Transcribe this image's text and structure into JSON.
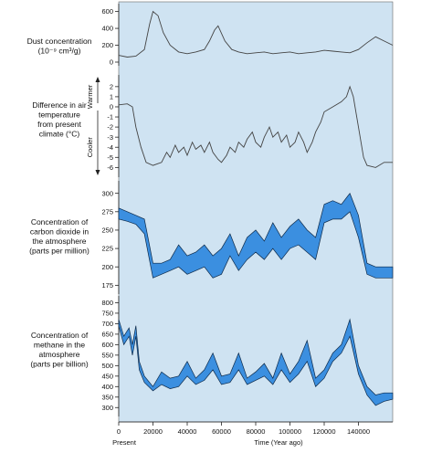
{
  "chart_data": [
    {
      "type": "line",
      "label_lines": [
        "Dust concentration",
        "(10⁻⁹ cm³/g)"
      ],
      "yticks": [
        0,
        200,
        400,
        600
      ],
      "ylim": [
        0,
        650
      ],
      "color": "#444444",
      "x": [
        0,
        5000,
        10000,
        15000,
        18000,
        20000,
        23000,
        26000,
        30000,
        35000,
        40000,
        45000,
        50000,
        53000,
        56000,
        58000,
        62000,
        66000,
        70000,
        75000,
        80000,
        85000,
        90000,
        95000,
        100000,
        105000,
        110000,
        115000,
        120000,
        125000,
        130000,
        135000,
        140000,
        145000,
        150000,
        155000,
        160000
      ],
      "y": [
        80,
        60,
        70,
        150,
        450,
        600,
        550,
        350,
        200,
        120,
        100,
        120,
        150,
        250,
        380,
        430,
        250,
        150,
        120,
        100,
        110,
        120,
        100,
        110,
        120,
        100,
        110,
        120,
        140,
        130,
        120,
        110,
        150,
        230,
        300,
        250,
        200
      ]
    },
    {
      "type": "line",
      "label_lines": [
        "Difference in air",
        "temperature",
        "from present",
        "climate (°C)"
      ],
      "side_labels": [
        "Warmer",
        "Cooler"
      ],
      "yticks": [
        2,
        1,
        0,
        -1,
        -2,
        -3,
        -4,
        -5,
        -6
      ],
      "ylim": [
        -6.6,
        2.8
      ],
      "color": "#444444",
      "x": [
        0,
        5000,
        8000,
        10000,
        13000,
        16000,
        20000,
        25000,
        28000,
        30000,
        33000,
        35000,
        38000,
        40000,
        43000,
        45000,
        48000,
        50000,
        53000,
        55000,
        58000,
        60000,
        63000,
        65000,
        68000,
        70000,
        73000,
        75000,
        78000,
        80000,
        83000,
        85000,
        88000,
        90000,
        93000,
        95000,
        98000,
        100000,
        103000,
        105000,
        108000,
        110000,
        113000,
        115000,
        118000,
        120000,
        125000,
        130000,
        133000,
        135000,
        137000,
        140000,
        143000,
        145000,
        150000,
        155000,
        160000
      ],
      "y": [
        0.2,
        0.3,
        0,
        -2,
        -4,
        -5.5,
        -5.8,
        -5.5,
        -4.5,
        -5,
        -3.8,
        -4.5,
        -4,
        -4.8,
        -3.5,
        -4.2,
        -3.8,
        -4.5,
        -3.5,
        -4.5,
        -5.2,
        -5.5,
        -4.8,
        -4,
        -4.5,
        -3.5,
        -4,
        -3.2,
        -2.5,
        -3.5,
        -4,
        -3,
        -2,
        -3,
        -2.5,
        -3.5,
        -2.8,
        -4,
        -3.5,
        -2.5,
        -3.5,
        -4.5,
        -3.5,
        -2.5,
        -1.5,
        -0.5,
        0,
        0.5,
        1,
        2,
        1,
        -2,
        -5,
        -5.8,
        -6,
        -5.5,
        -5.5
      ]
    },
    {
      "type": "area",
      "label_lines": [
        "Concentration of",
        "carbon dioxide in",
        "the atmosphere",
        "(parts per million)"
      ],
      "yticks": [
        175,
        200,
        225,
        250,
        275,
        300
      ],
      "ylim": [
        168,
        312
      ],
      "color": "#3b8fe0",
      "x": [
        0,
        5000,
        10000,
        15000,
        20000,
        25000,
        30000,
        35000,
        40000,
        45000,
        50000,
        55000,
        60000,
        65000,
        70000,
        75000,
        80000,
        85000,
        90000,
        95000,
        100000,
        105000,
        110000,
        115000,
        120000,
        125000,
        130000,
        135000,
        140000,
        145000,
        150000,
        155000,
        160000
      ],
      "upper": [
        280,
        275,
        270,
        265,
        205,
        205,
        210,
        230,
        215,
        220,
        230,
        215,
        225,
        245,
        215,
        240,
        250,
        235,
        260,
        240,
        255,
        265,
        250,
        240,
        285,
        290,
        285,
        300,
        270,
        205,
        200,
        200,
        200
      ],
      "lower": [
        265,
        262,
        258,
        245,
        185,
        190,
        195,
        200,
        190,
        195,
        200,
        185,
        190,
        215,
        195,
        210,
        220,
        210,
        225,
        210,
        225,
        230,
        220,
        210,
        260,
        265,
        265,
        275,
        240,
        190,
        185,
        185,
        185
      ]
    },
    {
      "type": "area",
      "label_lines": [
        "Concentration of",
        "methane in the",
        "atmosphere",
        "(parts per billion)"
      ],
      "yticks": [
        300,
        350,
        400,
        450,
        500,
        550,
        600,
        650,
        700,
        750,
        800
      ],
      "ylim": [
        275,
        815
      ],
      "color": "#3b8fe0",
      "x": [
        0,
        3000,
        6000,
        8000,
        10000,
        12000,
        15000,
        20000,
        25000,
        30000,
        35000,
        40000,
        45000,
        50000,
        55000,
        60000,
        65000,
        70000,
        75000,
        80000,
        85000,
        90000,
        95000,
        100000,
        105000,
        110000,
        115000,
        120000,
        125000,
        130000,
        135000,
        140000,
        145000,
        150000,
        155000,
        160000
      ],
      "upper": [
        720,
        640,
        680,
        600,
        690,
        520,
        450,
        400,
        470,
        440,
        450,
        520,
        440,
        480,
        560,
        450,
        460,
        560,
        440,
        470,
        510,
        440,
        560,
        460,
        520,
        620,
        440,
        480,
        560,
        600,
        720,
        500,
        400,
        360,
        370,
        370
      ],
      "lower": [
        690,
        600,
        640,
        550,
        640,
        480,
        420,
        380,
        410,
        390,
        400,
        450,
        410,
        430,
        480,
        410,
        420,
        480,
        410,
        430,
        450,
        410,
        480,
        420,
        460,
        520,
        400,
        440,
        520,
        560,
        640,
        460,
        360,
        310,
        330,
        340
      ]
    }
  ],
  "x_axis": {
    "ticks": [
      0,
      20000,
      40000,
      60000,
      80000,
      100000,
      120000,
      140000
    ],
    "xlim": [
      0,
      160000
    ],
    "left_label": "Present",
    "label": "Time (Year ago)"
  }
}
